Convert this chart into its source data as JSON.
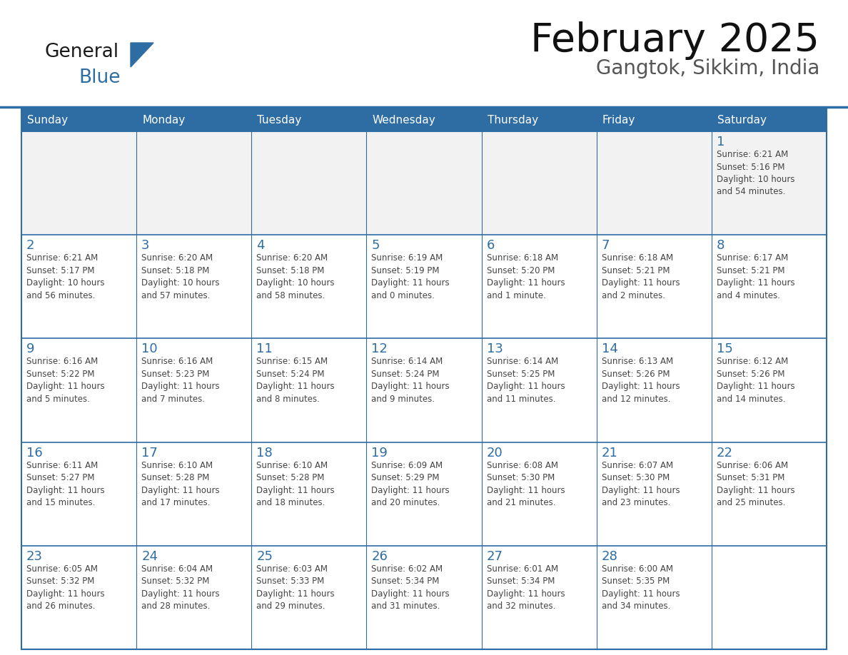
{
  "title": "February 2025",
  "subtitle": "Gangtok, Sikkim, India",
  "header_color": "#2e6da4",
  "header_text_color": "#ffffff",
  "cell_bg_color": "#ffffff",
  "cell_alt_bg_color": "#f2f2f2",
  "cell_border_color": "#2e6da4",
  "day_number_color": "#2e6da4",
  "cell_text_color": "#444444",
  "days_of_week": [
    "Sunday",
    "Monday",
    "Tuesday",
    "Wednesday",
    "Thursday",
    "Friday",
    "Saturday"
  ],
  "calendar_data": [
    [
      null,
      null,
      null,
      null,
      null,
      null,
      {
        "day": 1,
        "sunrise": "6:21 AM",
        "sunset": "5:16 PM",
        "daylight": "10 hours\nand 54 minutes."
      }
    ],
    [
      {
        "day": 2,
        "sunrise": "6:21 AM",
        "sunset": "5:17 PM",
        "daylight": "10 hours\nand 56 minutes."
      },
      {
        "day": 3,
        "sunrise": "6:20 AM",
        "sunset": "5:18 PM",
        "daylight": "10 hours\nand 57 minutes."
      },
      {
        "day": 4,
        "sunrise": "6:20 AM",
        "sunset": "5:18 PM",
        "daylight": "10 hours\nand 58 minutes."
      },
      {
        "day": 5,
        "sunrise": "6:19 AM",
        "sunset": "5:19 PM",
        "daylight": "11 hours\nand 0 minutes."
      },
      {
        "day": 6,
        "sunrise": "6:18 AM",
        "sunset": "5:20 PM",
        "daylight": "11 hours\nand 1 minute."
      },
      {
        "day": 7,
        "sunrise": "6:18 AM",
        "sunset": "5:21 PM",
        "daylight": "11 hours\nand 2 minutes."
      },
      {
        "day": 8,
        "sunrise": "6:17 AM",
        "sunset": "5:21 PM",
        "daylight": "11 hours\nand 4 minutes."
      }
    ],
    [
      {
        "day": 9,
        "sunrise": "6:16 AM",
        "sunset": "5:22 PM",
        "daylight": "11 hours\nand 5 minutes."
      },
      {
        "day": 10,
        "sunrise": "6:16 AM",
        "sunset": "5:23 PM",
        "daylight": "11 hours\nand 7 minutes."
      },
      {
        "day": 11,
        "sunrise": "6:15 AM",
        "sunset": "5:24 PM",
        "daylight": "11 hours\nand 8 minutes."
      },
      {
        "day": 12,
        "sunrise": "6:14 AM",
        "sunset": "5:24 PM",
        "daylight": "11 hours\nand 9 minutes."
      },
      {
        "day": 13,
        "sunrise": "6:14 AM",
        "sunset": "5:25 PM",
        "daylight": "11 hours\nand 11 minutes."
      },
      {
        "day": 14,
        "sunrise": "6:13 AM",
        "sunset": "5:26 PM",
        "daylight": "11 hours\nand 12 minutes."
      },
      {
        "day": 15,
        "sunrise": "6:12 AM",
        "sunset": "5:26 PM",
        "daylight": "11 hours\nand 14 minutes."
      }
    ],
    [
      {
        "day": 16,
        "sunrise": "6:11 AM",
        "sunset": "5:27 PM",
        "daylight": "11 hours\nand 15 minutes."
      },
      {
        "day": 17,
        "sunrise": "6:10 AM",
        "sunset": "5:28 PM",
        "daylight": "11 hours\nand 17 minutes."
      },
      {
        "day": 18,
        "sunrise": "6:10 AM",
        "sunset": "5:28 PM",
        "daylight": "11 hours\nand 18 minutes."
      },
      {
        "day": 19,
        "sunrise": "6:09 AM",
        "sunset": "5:29 PM",
        "daylight": "11 hours\nand 20 minutes."
      },
      {
        "day": 20,
        "sunrise": "6:08 AM",
        "sunset": "5:30 PM",
        "daylight": "11 hours\nand 21 minutes."
      },
      {
        "day": 21,
        "sunrise": "6:07 AM",
        "sunset": "5:30 PM",
        "daylight": "11 hours\nand 23 minutes."
      },
      {
        "day": 22,
        "sunrise": "6:06 AM",
        "sunset": "5:31 PM",
        "daylight": "11 hours\nand 25 minutes."
      }
    ],
    [
      {
        "day": 23,
        "sunrise": "6:05 AM",
        "sunset": "5:32 PM",
        "daylight": "11 hours\nand 26 minutes."
      },
      {
        "day": 24,
        "sunrise": "6:04 AM",
        "sunset": "5:32 PM",
        "daylight": "11 hours\nand 28 minutes."
      },
      {
        "day": 25,
        "sunrise": "6:03 AM",
        "sunset": "5:33 PM",
        "daylight": "11 hours\nand 29 minutes."
      },
      {
        "day": 26,
        "sunrise": "6:02 AM",
        "sunset": "5:34 PM",
        "daylight": "11 hours\nand 31 minutes."
      },
      {
        "day": 27,
        "sunrise": "6:01 AM",
        "sunset": "5:34 PM",
        "daylight": "11 hours\nand 32 minutes."
      },
      {
        "day": 28,
        "sunrise": "6:00 AM",
        "sunset": "5:35 PM",
        "daylight": "11 hours\nand 34 minutes."
      },
      null
    ]
  ],
  "logo_general_color": "#1a1a1a",
  "logo_blue_color": "#2e6da4",
  "figsize": [
    11.88,
    9.18
  ],
  "dpi": 100
}
